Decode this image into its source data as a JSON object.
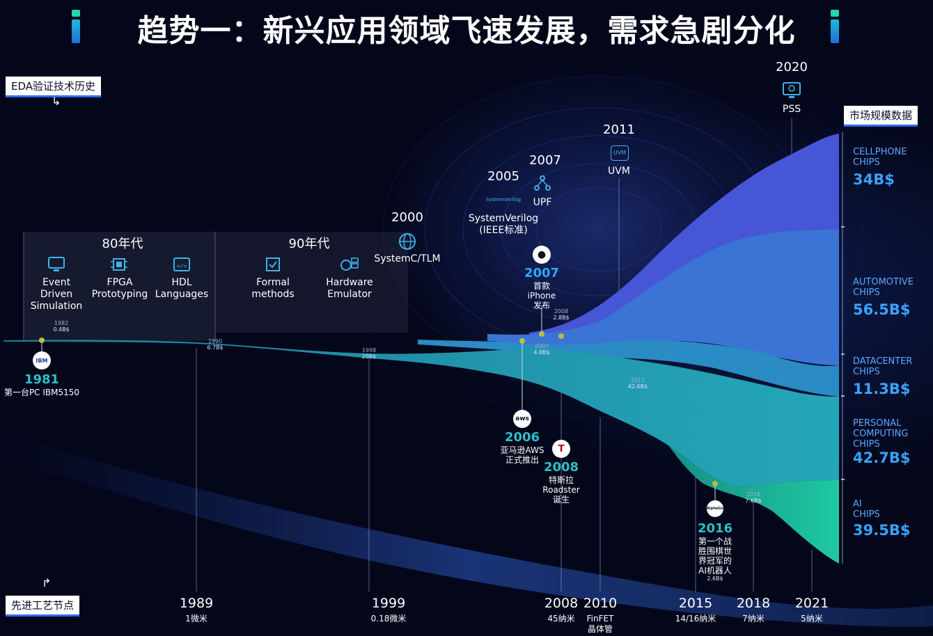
{
  "title": "趋势一：新兴应用领域飞速发展，需求急剧分化",
  "tags": {
    "eda_history": "EDA验证技术历史",
    "market_data": "市场规模数据",
    "process_node": "先进工艺节点"
  },
  "eras": {
    "e80": "80年代",
    "e90": "90年代"
  },
  "eda_tech": {
    "event_driven": "Event\nDriven\nSimulation",
    "fpga": "FPGA\nPrototyping",
    "hdl": "HDL\nLanguages",
    "formal": "Formal\nmethods",
    "emulator": "Hardware\nEmulator",
    "y2000": "2000",
    "systemc": "SystemC/TLM",
    "y2005": "2005",
    "sv_logo": "SystemVerilog",
    "systemverilog": "SystemVerilog\n(IEEE标准)",
    "y2007": "2007",
    "upf": "UPF",
    "y2011": "2011",
    "uvm_logo": "UVM",
    "uvm": "UVM",
    "y2020": "2020",
    "pss": "PSS"
  },
  "milestones": {
    "ibm_logo": "IBM",
    "ibm_year": "1981",
    "ibm_text": "第一台PC IBM5150",
    "iphone_year": "2007",
    "iphone_text": "首款\niPhone\n发布",
    "aws_logo": "aws",
    "aws_year": "2006",
    "aws_text": "亚马逊AWS\n正式推出",
    "tesla_logo": "T",
    "tesla_year": "2008",
    "tesla_text": "特斯拉\nRoadster\n诞生",
    "alphago_logo": "AlphaGo",
    "alphago_year": "2016",
    "alphago_text": "第一个战\n胜围棋世\n界冠军的\nAI机器人",
    "alphago_value": "2.6B$"
  },
  "market_points": [
    {
      "year": "1982",
      "value": "0.4B$"
    },
    {
      "year": "1990",
      "value": "6.7B$"
    },
    {
      "year": "1998",
      "value": "20B$"
    },
    {
      "year": "2007",
      "value": "4.8B$"
    },
    {
      "year": "2008",
      "value": "2.8B$"
    },
    {
      "year": "2012",
      "value": "42.6B$"
    },
    {
      "year": "2018",
      "value": "7.6B$"
    }
  ],
  "markets": [
    {
      "name": "CELLPHONE\nCHIPS",
      "value": "34B$",
      "color": "#4a5fd8"
    },
    {
      "name": "AUTOMOTIVE\nCHIPS",
      "value": "56.5B$",
      "color": "#3c7fd6"
    },
    {
      "name": "DATACENTER\nCHIPS",
      "value": "11.3B$",
      "color": "#2f8fc8"
    },
    {
      "name": "PERSONAL\nCOMPUTING\nCHIPS",
      "value": "42.7B$",
      "color": "#25a3b8"
    },
    {
      "name": "AI\nCHIPS",
      "value": "39.5B$",
      "color": "#1fc0a0"
    }
  ],
  "process_nodes": [
    {
      "year": "1989",
      "node": "1微米"
    },
    {
      "year": "1999",
      "node": "0.18微米"
    },
    {
      "year": "2008",
      "node": "45纳米"
    },
    {
      "year": "2010",
      "node": "FinFET\n晶体管"
    },
    {
      "year": "2015",
      "node": "14/16纳米"
    },
    {
      "year": "2018",
      "node": "7纳米"
    },
    {
      "year": "2021",
      "node": "5纳米"
    }
  ]
}
